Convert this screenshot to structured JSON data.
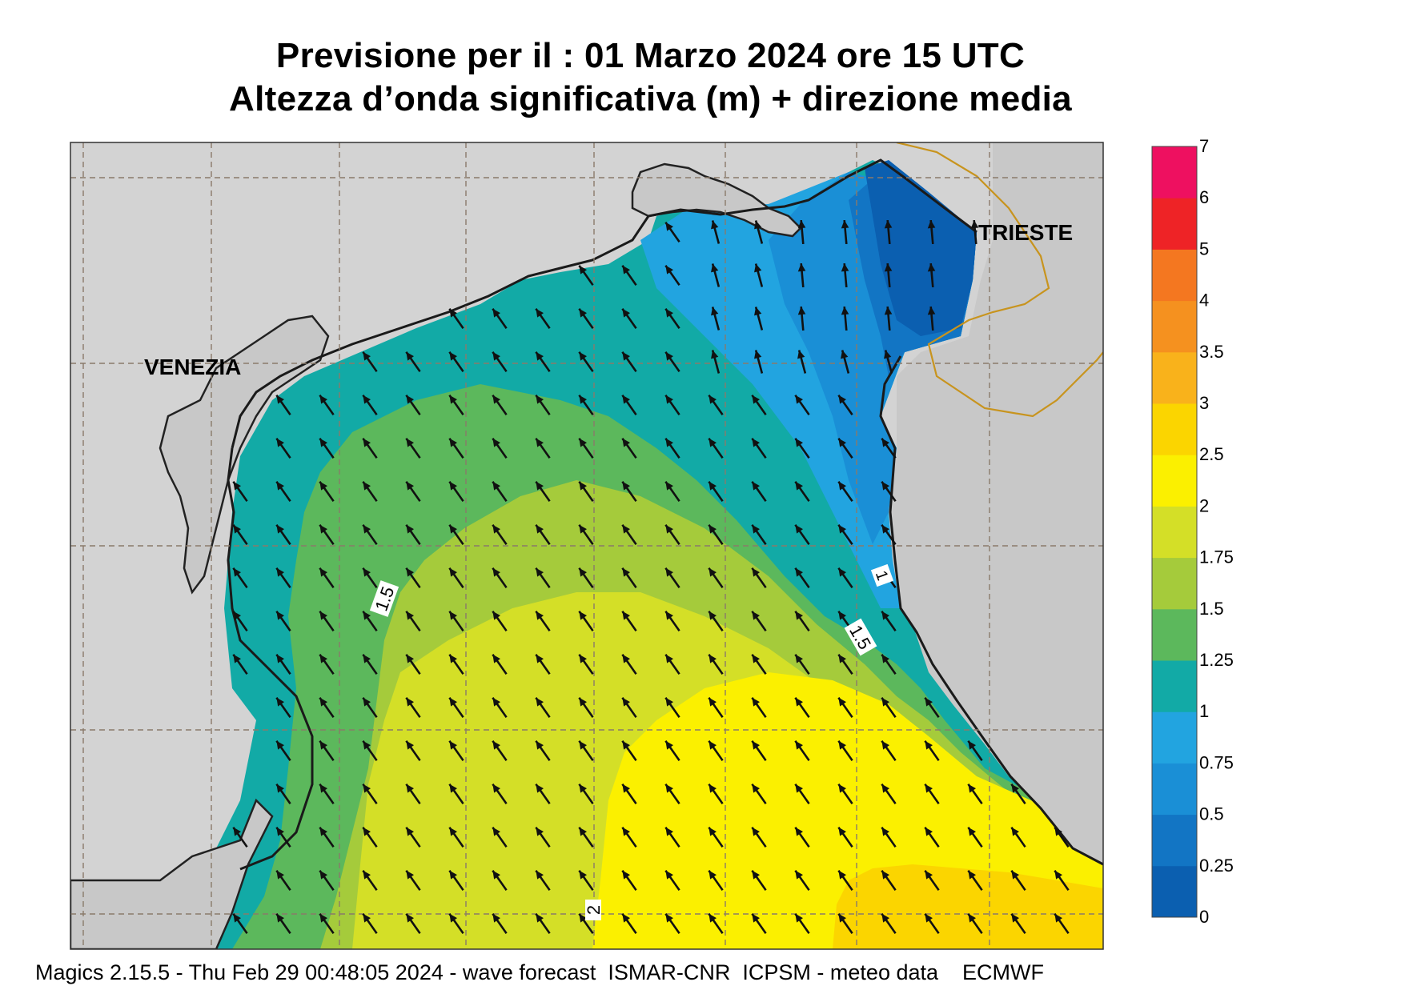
{
  "title": {
    "line1": "Previsione per il  :  01   Marzo   2024   ore 15 UTC",
    "line2": "Altezza d’onda significativa (m) + direzione media"
  },
  "cities": {
    "venezia": "VENEZIA",
    "trieste": "TRIESTE"
  },
  "contour_labels": {
    "c1": "1",
    "c15a": "1.5",
    "c15b": "1.5",
    "c2": "2"
  },
  "colorbar": {
    "levels": [
      "0",
      "0.25",
      "0.5",
      "0.75",
      "1",
      "1.25",
      "1.5",
      "1.75",
      "2",
      "2.5",
      "3",
      "3.5",
      "4",
      "5",
      "6",
      "7"
    ],
    "colors": [
      "#0b5fb0",
      "#1275c4",
      "#1a8fd6",
      "#22a4e0",
      "#12aaa6",
      "#5cb85c",
      "#a5cb3b",
      "#d4df27",
      "#fbf000",
      "#fbd500",
      "#f9b21b",
      "#f5911f",
      "#f47720",
      "#ee2326",
      "#ee1060"
    ]
  },
  "footer": "Magics 2.15.5 - Thu Feb 29 00:48:05 2024 - wave forecast  ISMAR-CNR  ICPSM - meteo data    ECMWF",
  "arrow_direction": "north-west"
}
